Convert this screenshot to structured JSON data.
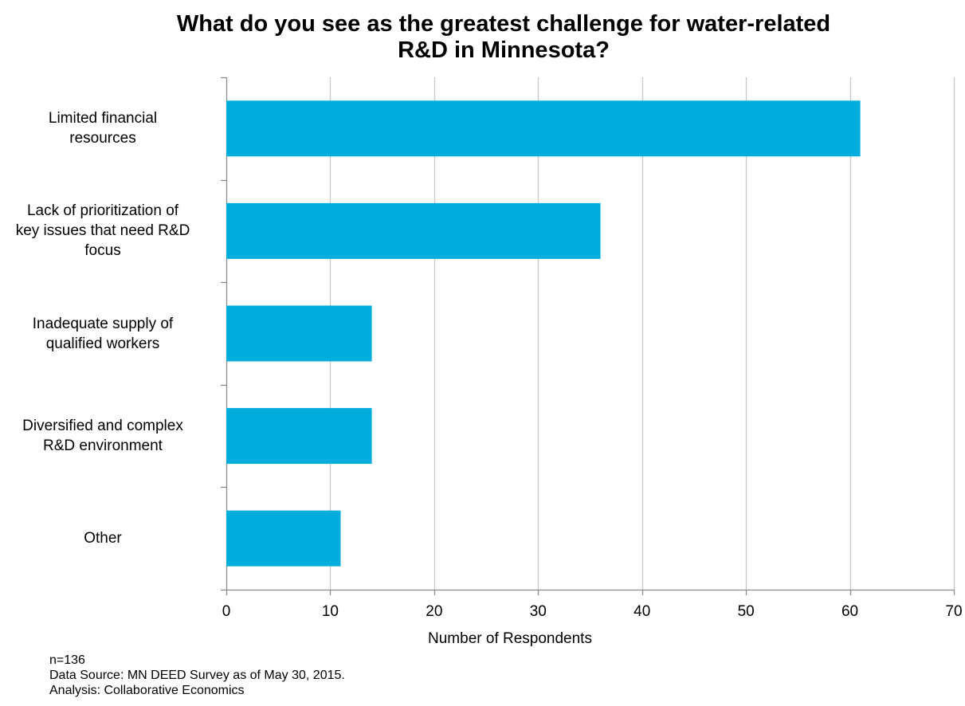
{
  "chart_data": {
    "type": "bar",
    "orientation": "horizontal",
    "title_lines": [
      "What do you see as the greatest challenge for water-related",
      "R&D in Minnesota?"
    ],
    "categories": [
      [
        "Limited financial",
        "resources"
      ],
      [
        "Lack of prioritization of",
        "key issues that need R&D",
        "focus"
      ],
      [
        "Inadequate supply of",
        "qualified workers"
      ],
      [
        "Diversified and complex",
        "R&D environment"
      ],
      [
        "Other"
      ]
    ],
    "values": [
      61,
      36,
      14,
      14,
      11
    ],
    "xlabel": "Number of Respondents",
    "xlim": [
      0,
      70
    ],
    "xticks": [
      "0",
      "10",
      "20",
      "30",
      "40",
      "50",
      "60",
      "70"
    ],
    "grid": true,
    "bar_color": "#00ADDC",
    "grid_color": "#C8C8C8"
  },
  "footer": {
    "sample": "n=136",
    "source": "Data Source: MN DEED Survey as of May 30, 2015.",
    "analysis": "Analysis: Collaborative Economics"
  }
}
